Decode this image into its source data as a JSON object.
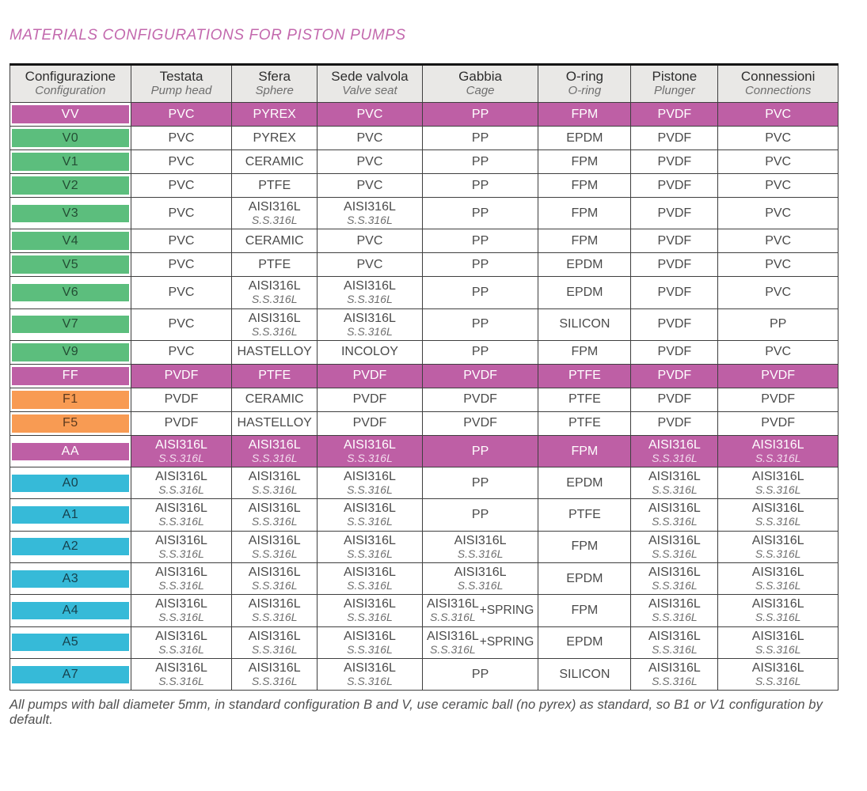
{
  "title": "MATERIALS CONFIGURATIONS FOR PISTON PUMPS",
  "footnote": "All pumps with ball diameter 5mm, in standard configuration B and V, use ceramic ball (no pyrex) as standard, so B1 or V1 configuration by default.",
  "colors": {
    "title_pink": "#c369ae",
    "row_magenta": "#be5fa5",
    "row_green": "#5cbe7d",
    "row_orange": "#f89b53",
    "row_cyan": "#36bad8",
    "header_gray": "#e9e8e6",
    "border": "#3f3f3f"
  },
  "table": {
    "columns": [
      {
        "it": "Configurazione",
        "en": "Configuration"
      },
      {
        "it": "Testata",
        "en": "Pump head"
      },
      {
        "it": "Sfera",
        "en": "Sphere"
      },
      {
        "it": "Sede valvola",
        "en": "Valve seat"
      },
      {
        "it": "Gabbia",
        "en": "Cage"
      },
      {
        "it": "O-ring",
        "en": "O-ring"
      },
      {
        "it": "Pistone",
        "en": "Plunger"
      },
      {
        "it": "Connessioni",
        "en": "Connections"
      }
    ],
    "column_widths_pct": [
      14.6,
      12.2,
      10.3,
      12.7,
      14.0,
      11.2,
      10.5,
      14.5
    ],
    "rows": [
      {
        "code": "VV",
        "swatch": "magenta",
        "full_row": true,
        "cells": [
          {
            "text": "PVC"
          },
          {
            "text": "PYREX"
          },
          {
            "text": "PVC"
          },
          {
            "text": "PP"
          },
          {
            "text": "FPM"
          },
          {
            "text": "PVDF"
          },
          {
            "text": "PVC"
          }
        ]
      },
      {
        "code": "V0",
        "swatch": "green",
        "full_row": false,
        "cells": [
          {
            "text": "PVC"
          },
          {
            "text": "PYREX"
          },
          {
            "text": "PVC"
          },
          {
            "text": "PP"
          },
          {
            "text": "EPDM"
          },
          {
            "text": "PVDF"
          },
          {
            "text": "PVC"
          }
        ]
      },
      {
        "code": "V1",
        "swatch": "green",
        "full_row": false,
        "cells": [
          {
            "text": "PVC"
          },
          {
            "text": "CERAMIC"
          },
          {
            "text": "PVC"
          },
          {
            "text": "PP"
          },
          {
            "text": "FPM"
          },
          {
            "text": "PVDF"
          },
          {
            "text": "PVC"
          }
        ]
      },
      {
        "code": "V2",
        "swatch": "green",
        "full_row": false,
        "cells": [
          {
            "text": "PVC"
          },
          {
            "text": "PTFE"
          },
          {
            "text": "PVC"
          },
          {
            "text": "PP"
          },
          {
            "text": "FPM"
          },
          {
            "text": "PVDF"
          },
          {
            "text": "PVC"
          }
        ]
      },
      {
        "code": "V3",
        "swatch": "green",
        "full_row": false,
        "cells": [
          {
            "text": "PVC"
          },
          {
            "text": "AISI316L",
            "subtext": "S.S.316L"
          },
          {
            "text": "AISI316L",
            "subtext": "S.S.316L"
          },
          {
            "text": "PP"
          },
          {
            "text": "FPM"
          },
          {
            "text": "PVDF"
          },
          {
            "text": "PVC"
          }
        ]
      },
      {
        "code": "V4",
        "swatch": "green",
        "full_row": false,
        "cells": [
          {
            "text": "PVC"
          },
          {
            "text": "CERAMIC"
          },
          {
            "text": "PVC"
          },
          {
            "text": "PP"
          },
          {
            "text": "FPM"
          },
          {
            "text": "PVDF"
          },
          {
            "text": "PVC"
          }
        ]
      },
      {
        "code": "V5",
        "swatch": "green",
        "full_row": false,
        "cells": [
          {
            "text": "PVC"
          },
          {
            "text": "PTFE"
          },
          {
            "text": "PVC"
          },
          {
            "text": "PP"
          },
          {
            "text": "EPDM"
          },
          {
            "text": "PVDF"
          },
          {
            "text": "PVC"
          }
        ]
      },
      {
        "code": "V6",
        "swatch": "green",
        "full_row": false,
        "cells": [
          {
            "text": "PVC"
          },
          {
            "text": "AISI316L",
            "subtext": "S.S.316L"
          },
          {
            "text": "AISI316L",
            "subtext": "S.S.316L"
          },
          {
            "text": "PP"
          },
          {
            "text": "EPDM"
          },
          {
            "text": "PVDF"
          },
          {
            "text": "PVC"
          }
        ]
      },
      {
        "code": "V7",
        "swatch": "green",
        "full_row": false,
        "cells": [
          {
            "text": "PVC"
          },
          {
            "text": "AISI316L",
            "subtext": "S.S.316L"
          },
          {
            "text": "AISI316L",
            "subtext": "S.S.316L"
          },
          {
            "text": "PP"
          },
          {
            "text": "SILICON"
          },
          {
            "text": "PVDF"
          },
          {
            "text": "PP"
          }
        ]
      },
      {
        "code": "V9",
        "swatch": "green",
        "full_row": false,
        "cells": [
          {
            "text": "PVC"
          },
          {
            "text": "HASTELLOY"
          },
          {
            "text": "INCOLOY"
          },
          {
            "text": "PP"
          },
          {
            "text": "FPM"
          },
          {
            "text": "PVDF"
          },
          {
            "text": "PVC"
          }
        ]
      },
      {
        "code": "FF",
        "swatch": "magenta",
        "full_row": true,
        "cells": [
          {
            "text": "PVDF"
          },
          {
            "text": "PTFE"
          },
          {
            "text": "PVDF"
          },
          {
            "text": "PVDF"
          },
          {
            "text": "PTFE"
          },
          {
            "text": "PVDF"
          },
          {
            "text": "PVDF"
          }
        ]
      },
      {
        "code": "F1",
        "swatch": "orange",
        "full_row": false,
        "cells": [
          {
            "text": "PVDF"
          },
          {
            "text": "CERAMIC"
          },
          {
            "text": "PVDF"
          },
          {
            "text": "PVDF"
          },
          {
            "text": "PTFE"
          },
          {
            "text": "PVDF"
          },
          {
            "text": "PVDF"
          }
        ]
      },
      {
        "code": "F5",
        "swatch": "orange",
        "full_row": false,
        "cells": [
          {
            "text": "PVDF"
          },
          {
            "text": "HASTELLOY"
          },
          {
            "text": "PVDF"
          },
          {
            "text": "PVDF"
          },
          {
            "text": "PTFE"
          },
          {
            "text": "PVDF"
          },
          {
            "text": "PVDF"
          }
        ]
      },
      {
        "code": "AA",
        "swatch": "magenta",
        "full_row": true,
        "cells": [
          {
            "text": "AISI316L",
            "subtext": "S.S.316L"
          },
          {
            "text": "AISI316L",
            "subtext": "S.S.316L"
          },
          {
            "text": "AISI316L",
            "subtext": "S.S.316L"
          },
          {
            "text": "PP"
          },
          {
            "text": "FPM"
          },
          {
            "text": "AISI316L",
            "subtext": "S.S.316L"
          },
          {
            "text": "AISI316L",
            "subtext": "S.S.316L"
          }
        ]
      },
      {
        "code": "A0",
        "swatch": "cyan",
        "full_row": false,
        "cells": [
          {
            "text": "AISI316L",
            "subtext": "S.S.316L"
          },
          {
            "text": "AISI316L",
            "subtext": "S.S.316L"
          },
          {
            "text": "AISI316L",
            "subtext": "S.S.316L"
          },
          {
            "text": "PP"
          },
          {
            "text": "EPDM"
          },
          {
            "text": "AISI316L",
            "subtext": "S.S.316L"
          },
          {
            "text": "AISI316L",
            "subtext": "S.S.316L"
          }
        ]
      },
      {
        "code": "A1",
        "swatch": "cyan",
        "full_row": false,
        "cells": [
          {
            "text": "AISI316L",
            "subtext": "S.S.316L"
          },
          {
            "text": "AISI316L",
            "subtext": "S.S.316L"
          },
          {
            "text": "AISI316L",
            "subtext": "S.S.316L"
          },
          {
            "text": "PP"
          },
          {
            "text": "PTFE"
          },
          {
            "text": "AISI316L",
            "subtext": "S.S.316L"
          },
          {
            "text": "AISI316L",
            "subtext": "S.S.316L"
          }
        ]
      },
      {
        "code": "A2",
        "swatch": "cyan",
        "full_row": false,
        "cells": [
          {
            "text": "AISI316L",
            "subtext": "S.S.316L"
          },
          {
            "text": "AISI316L",
            "subtext": "S.S.316L"
          },
          {
            "text": "AISI316L",
            "subtext": "S.S.316L"
          },
          {
            "text": "AISI316L",
            "subtext": "S.S.316L"
          },
          {
            "text": "FPM"
          },
          {
            "text": "AISI316L",
            "subtext": "S.S.316L"
          },
          {
            "text": "AISI316L",
            "subtext": "S.S.316L"
          }
        ]
      },
      {
        "code": "A3",
        "swatch": "cyan",
        "full_row": false,
        "cells": [
          {
            "text": "AISI316L",
            "subtext": "S.S.316L"
          },
          {
            "text": "AISI316L",
            "subtext": "S.S.316L"
          },
          {
            "text": "AISI316L",
            "subtext": "S.S.316L"
          },
          {
            "text": "AISI316L",
            "subtext": "S.S.316L"
          },
          {
            "text": "EPDM"
          },
          {
            "text": "AISI316L",
            "subtext": "S.S.316L"
          },
          {
            "text": "AISI316L",
            "subtext": "S.S.316L"
          }
        ]
      },
      {
        "code": "A4",
        "swatch": "cyan",
        "full_row": false,
        "cells": [
          {
            "text": "AISI316L",
            "subtext": "S.S.316L"
          },
          {
            "text": "AISI316L",
            "subtext": "S.S.316L"
          },
          {
            "text": "AISI316L",
            "subtext": "S.S.316L"
          },
          {
            "text": "AISI316L",
            "subtext": "S.S.316L",
            "suffix": "+SPRING"
          },
          {
            "text": "FPM"
          },
          {
            "text": "AISI316L",
            "subtext": "S.S.316L"
          },
          {
            "text": "AISI316L",
            "subtext": "S.S.316L"
          }
        ]
      },
      {
        "code": "A5",
        "swatch": "cyan",
        "full_row": false,
        "cells": [
          {
            "text": "AISI316L",
            "subtext": "S.S.316L"
          },
          {
            "text": "AISI316L",
            "subtext": "S.S.316L"
          },
          {
            "text": "AISI316L",
            "subtext": "S.S.316L"
          },
          {
            "text": "AISI316L",
            "subtext": "S.S.316L",
            "suffix": "+SPRING"
          },
          {
            "text": "EPDM"
          },
          {
            "text": "AISI316L",
            "subtext": "S.S.316L"
          },
          {
            "text": "AISI316L",
            "subtext": "S.S.316L"
          }
        ]
      },
      {
        "code": "A7",
        "swatch": "cyan",
        "full_row": false,
        "cells": [
          {
            "text": "AISI316L",
            "subtext": "S.S.316L"
          },
          {
            "text": "AISI316L",
            "subtext": "S.S.316L"
          },
          {
            "text": "AISI316L",
            "subtext": "S.S.316L"
          },
          {
            "text": "PP"
          },
          {
            "text": "SILICON"
          },
          {
            "text": "AISI316L",
            "subtext": "S.S.316L"
          },
          {
            "text": "AISI316L",
            "subtext": "S.S.316L"
          }
        ]
      }
    ]
  }
}
